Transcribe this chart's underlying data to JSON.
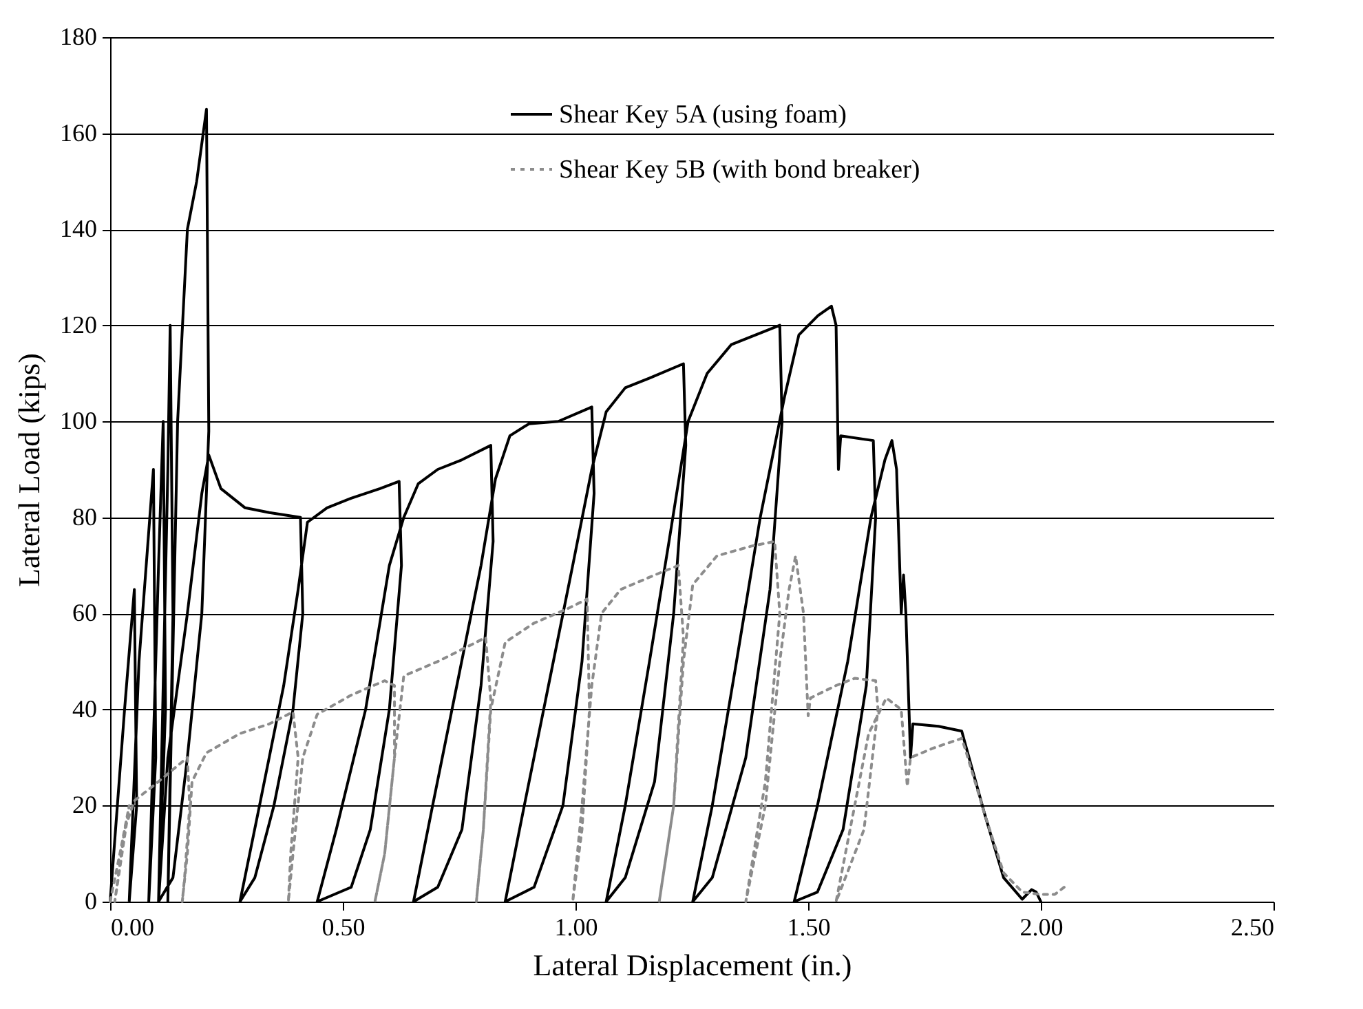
{
  "chart_data": {
    "type": "line",
    "xlabel": "Lateral Displacement (in.)",
    "ylabel": "Lateral Load (kips)",
    "xlim": [
      0,
      2.5
    ],
    "xticks": [
      {
        "value": 0,
        "label": "0.00"
      },
      {
        "value": 0.5,
        "label": "0.50"
      },
      {
        "value": 1,
        "label": "1.00"
      },
      {
        "value": 1.5,
        "label": "1.50"
      },
      {
        "value": 2,
        "label": "2.00"
      },
      {
        "value": 2.5,
        "label": "2.50"
      }
    ],
    "ylim": [
      0,
      180
    ],
    "yticks": [
      0,
      20,
      40,
      60,
      80,
      100,
      120,
      140,
      160,
      180
    ],
    "grid": "y",
    "legend": "top",
    "marker": "none",
    "series": [
      {
        "name": "Shear Key 5A (using foam)",
        "color": "#000000",
        "line_style": "solid",
        "x": [
          0,
          0.031,
          0.052,
          0.057,
          0.041,
          0.062,
          0.093,
          0.098,
          0.083,
          0.104,
          0.114,
          0.119,
          0.104,
          0.124,
          0.129,
          0.135,
          0.124,
          0.145,
          0.166,
          0.186,
          0.207,
          0.212,
          0.197,
          0.166,
          0.135,
          0.104,
          0.124,
          0.166,
          0.197,
          0.212,
          0.238,
          0.29,
          0.342,
          0.409,
          0.414,
          0.393,
          0.352,
          0.311,
          0.279,
          0.321,
          0.373,
          0.404,
          0.424,
          0.466,
          0.518,
          0.58,
          0.621,
          0.626,
          0.6,
          0.559,
          0.518,
          0.445,
          0.486,
          0.549,
          0.6,
          0.631,
          0.662,
          0.704,
          0.756,
          0.818,
          0.823,
          0.797,
          0.756,
          0.704,
          0.652,
          0.693,
          0.745,
          0.797,
          0.828,
          0.859,
          0.9,
          0.963,
          1.035,
          1.04,
          1.014,
          0.973,
          0.911,
          0.849,
          0.89,
          0.942,
          0.994,
          1.035,
          1.066,
          1.107,
          1.159,
          1.232,
          1.237,
          1.211,
          1.17,
          1.107,
          1.066,
          1.107,
          1.159,
          1.201,
          1.242,
          1.283,
          1.335,
          1.387,
          1.439,
          1.444,
          1.418,
          1.366,
          1.294,
          1.252,
          1.294,
          1.346,
          1.397,
          1.449,
          1.48,
          1.521,
          1.55,
          1.56,
          1.565,
          1.57,
          1.64,
          1.645,
          1.625,
          1.575,
          1.52,
          1.47,
          1.52,
          1.585,
          1.635,
          1.665,
          1.68,
          1.69,
          1.7,
          1.705,
          1.71,
          1.72,
          1.725,
          1.78,
          1.83,
          1.84,
          1.88,
          1.92,
          1.96,
          1.98,
          1.99,
          2
        ],
        "values": [
          0,
          40,
          65,
          20,
          0,
          50,
          90,
          30,
          0,
          70,
          100,
          40,
          0,
          90,
          120,
          60,
          0,
          100,
          140,
          150,
          165,
          98,
          60,
          30,
          5,
          0,
          30,
          60,
          85,
          93,
          86,
          82,
          81,
          80,
          60,
          40,
          20,
          5,
          0,
          20,
          45,
          65,
          79,
          82,
          84,
          86,
          87.5,
          70,
          40,
          15,
          3,
          0,
          15,
          40,
          70,
          80,
          87,
          90,
          92,
          95,
          75,
          45,
          15,
          3,
          0,
          20,
          45,
          70,
          88,
          97,
          99.5,
          100,
          103,
          85,
          50,
          20,
          3,
          0,
          20,
          45,
          70,
          90,
          102,
          107,
          109,
          112,
          95,
          60,
          25,
          5,
          0,
          20,
          50,
          75,
          100,
          110,
          116,
          118,
          120,
          100,
          65,
          30,
          5,
          0,
          20,
          50,
          80,
          105,
          118,
          122,
          124,
          120,
          90,
          97,
          96,
          80,
          45,
          15,
          2,
          0,
          20,
          50,
          80,
          92,
          96,
          90,
          60,
          68,
          60,
          30,
          37,
          36.5,
          35.5,
          32,
          18,
          5,
          0.5,
          2.5,
          2,
          0
        ]
      },
      {
        "name": "Shear Key 5B (with bond breaker)",
        "color": "#8c8c8c",
        "line_style": "dashed",
        "x": [
          0,
          0.021,
          0.041,
          0.01,
          0.031,
          0.052,
          0.104,
          0.166,
          0.171,
          0.16,
          0.155,
          0.166,
          0.176,
          0.207,
          0.279,
          0.342,
          0.393,
          0.404,
          0.388,
          0.383,
          0.393,
          0.414,
          0.445,
          0.518,
          0.59,
          0.611,
          0.611,
          0.59,
          0.569,
          0.59,
          0.611,
          0.631,
          0.704,
          0.766,
          0.807,
          0.818,
          0.802,
          0.787,
          0.802,
          0.818,
          0.849,
          0.911,
          0.983,
          1.025,
          1.03,
          1.014,
          0.994,
          1.014,
          1.035,
          1.056,
          1.097,
          1.17,
          1.221,
          1.232,
          1.211,
          1.18,
          1.211,
          1.232,
          1.252,
          1.304,
          1.377,
          1.428,
          1.439,
          1.408,
          1.366,
          1.408,
          1.439,
          1.459,
          1.473,
          1.49,
          1.5,
          1.505,
          1.56,
          1.6,
          1.645,
          1.65,
          1.62,
          1.56,
          1.59,
          1.63,
          1.668,
          1.7,
          1.713,
          1.72,
          1.77,
          1.83,
          1.84,
          1.88,
          1.92,
          1.96,
          2,
          2.03,
          2.05
        ],
        "values": [
          0,
          10,
          20,
          0,
          15,
          21,
          25,
          30,
          20,
          5,
          0,
          10,
          25,
          31,
          35,
          37,
          39.5,
          30,
          10,
          0,
          10,
          30,
          39,
          43,
          46,
          45,
          30,
          10,
          0,
          10,
          30,
          47,
          50,
          53,
          55,
          42,
          15,
          0,
          15,
          40,
          54,
          58,
          61,
          63,
          40,
          15,
          0,
          20,
          45,
          60,
          65,
          68,
          70,
          55,
          20,
          0,
          20,
          50,
          66,
          72,
          74,
          75,
          60,
          25,
          0,
          20,
          50,
          65,
          72,
          60,
          38.7,
          42.4,
          45,
          46.5,
          46,
          40,
          15,
          0,
          15,
          35,
          42.4,
          40,
          24,
          30,
          32,
          34,
          31,
          18,
          6,
          2,
          1.5,
          1.5,
          3
        ]
      }
    ]
  }
}
